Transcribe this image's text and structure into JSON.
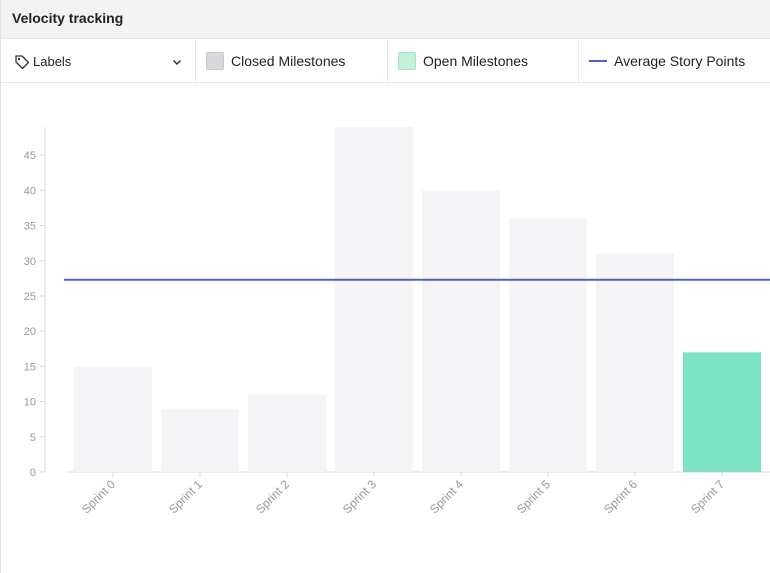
{
  "header": {
    "title": "Velocity tracking"
  },
  "toolbar": {
    "labels_dropdown": "Labels",
    "legend": {
      "closed": "Closed Milestones",
      "open": "Open Milestones",
      "average": "Average Story Points"
    }
  },
  "icons": {
    "labels": "tag-icon",
    "dropdown": "chevron-down-icon"
  },
  "colors": {
    "closed_bar": "#f4f4f6",
    "open_bar": "#7de5c5",
    "average_line": "#5a5eb9",
    "axis": "#d8d8d8",
    "tick_text": "#999999"
  },
  "chart_data": {
    "type": "bar",
    "categories": [
      "Sprint 0",
      "Sprint 1",
      "Sprint 2",
      "Sprint 3",
      "Sprint 4",
      "Sprint 5",
      "Sprint 6",
      "Sprint 7"
    ],
    "series": [
      {
        "name": "Closed Milestones",
        "values": [
          15,
          9,
          11,
          49,
          40,
          36,
          31,
          null
        ]
      },
      {
        "name": "Open Milestones",
        "values": [
          null,
          null,
          null,
          null,
          null,
          null,
          null,
          17
        ]
      }
    ],
    "average": {
      "name": "Average Story Points",
      "value": 27.3
    },
    "ylim": [
      0,
      49
    ],
    "yticks": [
      0,
      5,
      10,
      15,
      20,
      25,
      30,
      35,
      40,
      45
    ],
    "grid": false,
    "legend": "top"
  }
}
